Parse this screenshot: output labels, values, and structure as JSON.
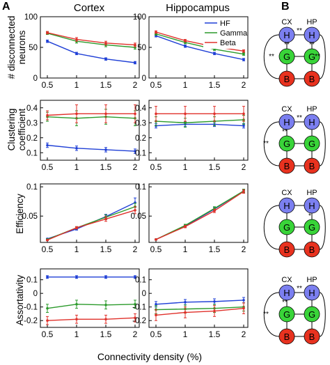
{
  "panel_labels": {
    "a": "A",
    "b": "B"
  },
  "column_titles": [
    "Cortex",
    "Hippocampus"
  ],
  "x_axis_label": "Connectivity density (%)",
  "legend": [
    {
      "name": "HF",
      "color": "#1f3fd6"
    },
    {
      "name": "Gamma",
      "color": "#2a9a2a"
    },
    {
      "name": "Beta",
      "color": "#e0302a"
    }
  ],
  "row_labels": [
    [
      "# disconnected",
      "neurons"
    ],
    [
      "Clustering",
      "coefficient"
    ],
    [
      "Efficiency"
    ],
    [
      "Assortativity"
    ]
  ],
  "chart_data": [
    {
      "type": "line",
      "row": 0,
      "column": "Cortex",
      "x": [
        0.5,
        1,
        1.5,
        2
      ],
      "xticks": [
        "0.5",
        "1",
        "1.5",
        "2"
      ],
      "ylim": [
        0,
        100
      ],
      "yticks": [
        "0",
        "50",
        "100"
      ],
      "series": [
        {
          "name": "HF",
          "values": [
            60,
            40,
            31,
            25
          ],
          "err": [
            2,
            2,
            2,
            2
          ]
        },
        {
          "name": "Gamma",
          "values": [
            73,
            60,
            54,
            50
          ],
          "err": [
            2,
            3,
            3,
            3
          ]
        },
        {
          "name": "Beta",
          "values": [
            74,
            63,
            57,
            54
          ],
          "err": [
            2,
            3,
            3,
            3
          ]
        }
      ]
    },
    {
      "type": "line",
      "row": 0,
      "column": "Hippocampus",
      "x": [
        0.5,
        1,
        1.5,
        2
      ],
      "xticks": [
        "0.5",
        "1",
        "1.5",
        "2"
      ],
      "ylim": [
        0,
        100
      ],
      "yticks": [
        "0",
        "50",
        "100"
      ],
      "series": [
        {
          "name": "HF",
          "values": [
            69,
            52,
            40,
            30
          ],
          "err": [
            2,
            2,
            2,
            2
          ]
        },
        {
          "name": "Gamma",
          "values": [
            72,
            58,
            47,
            39
          ],
          "err": [
            2,
            2,
            2,
            2
          ]
        },
        {
          "name": "Beta",
          "values": [
            75,
            61,
            51,
            44
          ],
          "err": [
            2,
            2,
            2,
            2
          ]
        }
      ]
    },
    {
      "type": "line",
      "row": 1,
      "column": "Cortex",
      "x": [
        0.5,
        1,
        1.5,
        2
      ],
      "xticks": [
        "0.5",
        "1",
        "1.5",
        "2"
      ],
      "ylim": [
        0.05,
        0.45
      ],
      "yticks": [
        "0.1",
        "0.2",
        "0.3",
        "0.4"
      ],
      "series": [
        {
          "name": "HF",
          "values": [
            0.15,
            0.13,
            0.12,
            0.11
          ],
          "err": [
            0.015,
            0.015,
            0.015,
            0.015
          ]
        },
        {
          "name": "Gamma",
          "values": [
            0.34,
            0.33,
            0.34,
            0.33
          ],
          "err": [
            0.03,
            0.05,
            0.05,
            0.05
          ]
        },
        {
          "name": "Beta",
          "values": [
            0.35,
            0.36,
            0.36,
            0.36
          ],
          "err": [
            0.03,
            0.06,
            0.06,
            0.06
          ]
        }
      ]
    },
    {
      "type": "line",
      "row": 1,
      "column": "Hippocampus",
      "x": [
        0.5,
        1,
        1.5,
        2
      ],
      "xticks": [
        "0.5",
        "1",
        "1.5",
        "2"
      ],
      "ylim": [
        0.05,
        0.45
      ],
      "yticks": [
        "0.1",
        "0.2",
        "0.3",
        "0.4"
      ],
      "series": [
        {
          "name": "HF",
          "values": [
            0.28,
            0.29,
            0.29,
            0.28
          ],
          "err": [
            0.015,
            0.015,
            0.015,
            0.015
          ]
        },
        {
          "name": "Gamma",
          "values": [
            0.31,
            0.3,
            0.31,
            0.32
          ],
          "err": [
            0.03,
            0.03,
            0.03,
            0.03
          ]
        },
        {
          "name": "Beta",
          "values": [
            0.36,
            0.36,
            0.36,
            0.36
          ],
          "err": [
            0.05,
            0.05,
            0.05,
            0.05
          ]
        }
      ]
    },
    {
      "type": "line",
      "row": 2,
      "column": "Cortex",
      "x": [
        0.5,
        1,
        1.5,
        2
      ],
      "xticks": [
        "0.5",
        "1",
        "1.5",
        "2"
      ],
      "ylim": [
        0.005,
        0.105
      ],
      "yticks": [
        "0.05",
        "0.1"
      ],
      "series": [
        {
          "name": "HF",
          "values": [
            0.011,
            0.028,
            0.049,
            0.073
          ],
          "err": [
            0.001,
            0.002,
            0.004,
            0.008
          ]
        },
        {
          "name": "Gamma",
          "values": [
            0.01,
            0.03,
            0.048,
            0.066
          ],
          "err": [
            0.001,
            0.002,
            0.004,
            0.006
          ]
        },
        {
          "name": "Beta",
          "values": [
            0.009,
            0.03,
            0.045,
            0.06
          ],
          "err": [
            0.001,
            0.002,
            0.004,
            0.006
          ]
        }
      ]
    },
    {
      "type": "line",
      "row": 2,
      "column": "Hippocampus",
      "x": [
        0.5,
        1,
        1.5,
        2
      ],
      "xticks": [
        "0.5",
        "1",
        "1.5",
        "2"
      ],
      "ylim": [
        0.005,
        0.105
      ],
      "yticks": [
        "0.05",
        "0.1"
      ],
      "series": [
        {
          "name": "HF",
          "values": [
            0.01,
            0.033,
            0.062,
            0.093
          ],
          "err": [
            0.001,
            0.002,
            0.003,
            0.003
          ]
        },
        {
          "name": "Gamma",
          "values": [
            0.01,
            0.034,
            0.063,
            0.093
          ],
          "err": [
            0.001,
            0.002,
            0.003,
            0.003
          ]
        },
        {
          "name": "Beta",
          "values": [
            0.01,
            0.032,
            0.059,
            0.092
          ],
          "err": [
            0.001,
            0.002,
            0.003,
            0.003
          ]
        }
      ]
    },
    {
      "type": "line",
      "row": 3,
      "column": "Cortex",
      "x": [
        0.5,
        1,
        1.5,
        2
      ],
      "xticks": [
        "0.5",
        "1",
        "1.5",
        "2"
      ],
      "ylim": [
        -0.25,
        0.18
      ],
      "yticks": [
        "0.1",
        "0",
        "-0.1",
        "-0.2"
      ],
      "series": [
        {
          "name": "HF",
          "values": [
            0.12,
            0.12,
            0.12,
            0.12
          ],
          "err": [
            0.01,
            0.01,
            0.01,
            0.01
          ]
        },
        {
          "name": "Gamma",
          "values": [
            -0.11,
            -0.08,
            -0.085,
            -0.08
          ],
          "err": [
            0.03,
            0.03,
            0.03,
            0.03
          ]
        },
        {
          "name": "Beta",
          "values": [
            -0.2,
            -0.19,
            -0.19,
            -0.18
          ],
          "err": [
            0.03,
            0.03,
            0.03,
            0.03
          ]
        }
      ]
    },
    {
      "type": "line",
      "row": 3,
      "column": "Hippocampus",
      "x": [
        0.5,
        1,
        1.5,
        2
      ],
      "xticks": [
        "0.5",
        "1",
        "1.5",
        "2"
      ],
      "ylim": [
        -0.25,
        0.18
      ],
      "yticks": [
        "0.1",
        "0",
        "-0.1",
        "-0.2"
      ],
      "series": [
        {
          "name": "HF",
          "values": [
            -0.08,
            -0.065,
            -0.06,
            -0.05
          ],
          "err": [
            0.02,
            0.02,
            0.02,
            0.02
          ]
        },
        {
          "name": "Gamma",
          "values": [
            -0.12,
            -0.115,
            -0.11,
            -0.1
          ],
          "err": [
            0.03,
            0.03,
            0.03,
            0.03
          ]
        },
        {
          "name": "Beta",
          "values": [
            -0.16,
            -0.14,
            -0.13,
            -0.11
          ],
          "err": [
            0.04,
            0.04,
            0.04,
            0.04
          ]
        }
      ]
    }
  ],
  "network_diagrams": [
    {
      "labels": [
        "CX",
        "HP"
      ],
      "nodes": [
        "H",
        "H",
        "G",
        "G",
        "B",
        "B"
      ],
      "annotations": [
        "**",
        "**",
        "**",
        "**",
        "**"
      ]
    },
    {
      "labels": [
        "CX",
        "HP"
      ],
      "nodes": [
        "H",
        "H",
        "G",
        "G",
        "B",
        "B"
      ],
      "annotations": [
        "**",
        "**",
        "**"
      ]
    },
    {
      "labels": [
        "CX",
        "HP"
      ],
      "nodes": [
        "H",
        "H",
        "G",
        "G",
        "B",
        "B"
      ],
      "annotations": [
        "*"
      ]
    },
    {
      "labels": [
        "CX",
        "HP"
      ],
      "nodes": [
        "H",
        "H",
        "G",
        "G",
        "B",
        "B"
      ],
      "annotations": [
        "**",
        "**",
        "**"
      ]
    }
  ],
  "node_colors": {
    "H": "#7b7ff0",
    "G": "#39d439",
    "B": "#e8321f"
  }
}
